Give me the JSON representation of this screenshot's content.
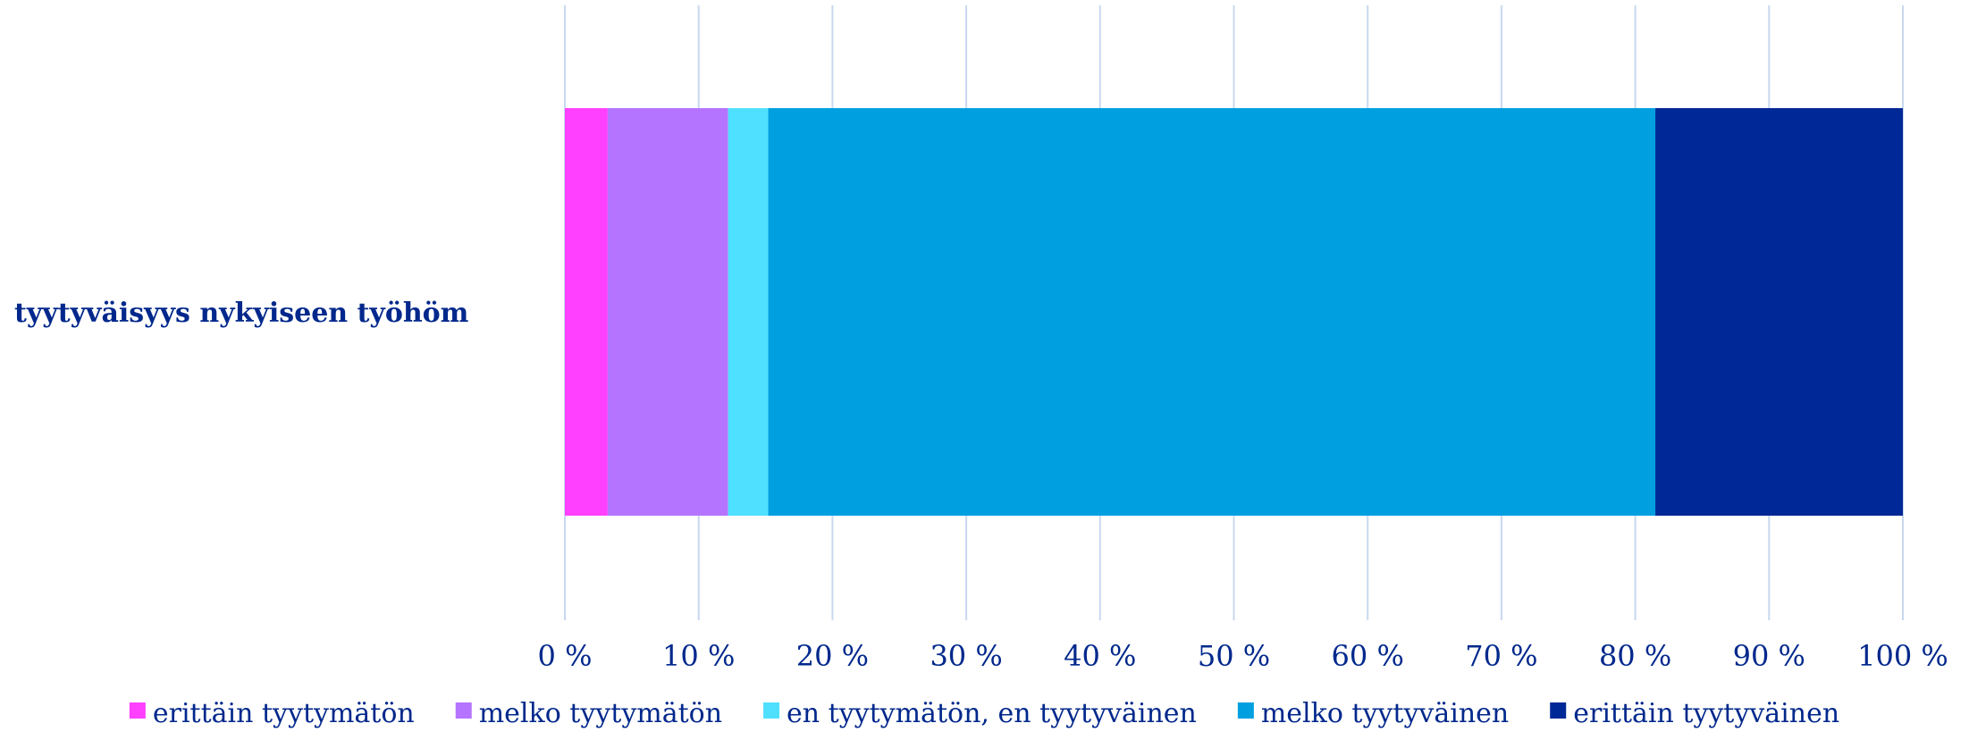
{
  "chart_data": {
    "type": "bar",
    "orientation": "horizontal",
    "stacked": true,
    "categories": [
      "tyytyväisyys nykyiseen työhöm"
    ],
    "series": [
      {
        "name": "erittäin tyytymätön",
        "values": [
          3.2
        ],
        "color": "#FF40FF"
      },
      {
        "name": "melko tyytymätön",
        "values": [
          9.0
        ],
        "color": "#B574FF"
      },
      {
        "name": "en tyytymätön, en tyytyväinen",
        "values": [
          3.0
        ],
        "color": "#50E0FF"
      },
      {
        "name": "melko tyytyväinen",
        "values": [
          66.3
        ],
        "color": "#00A0E0"
      },
      {
        "name": "erittäin tyytyväinen",
        "values": [
          18.5
        ],
        "color": "#002896"
      }
    ],
    "xlim": [
      0,
      100
    ],
    "x_ticks": [
      "0 %",
      "10 %",
      "20 %",
      "30 %",
      "40 %",
      "50 %",
      "60 %",
      "70 %",
      "80 %",
      "90 %",
      "100 %"
    ],
    "grid": true,
    "gridline_color": "#C8D8F0",
    "text_color": "#00288C",
    "legend_position": "bottom"
  }
}
